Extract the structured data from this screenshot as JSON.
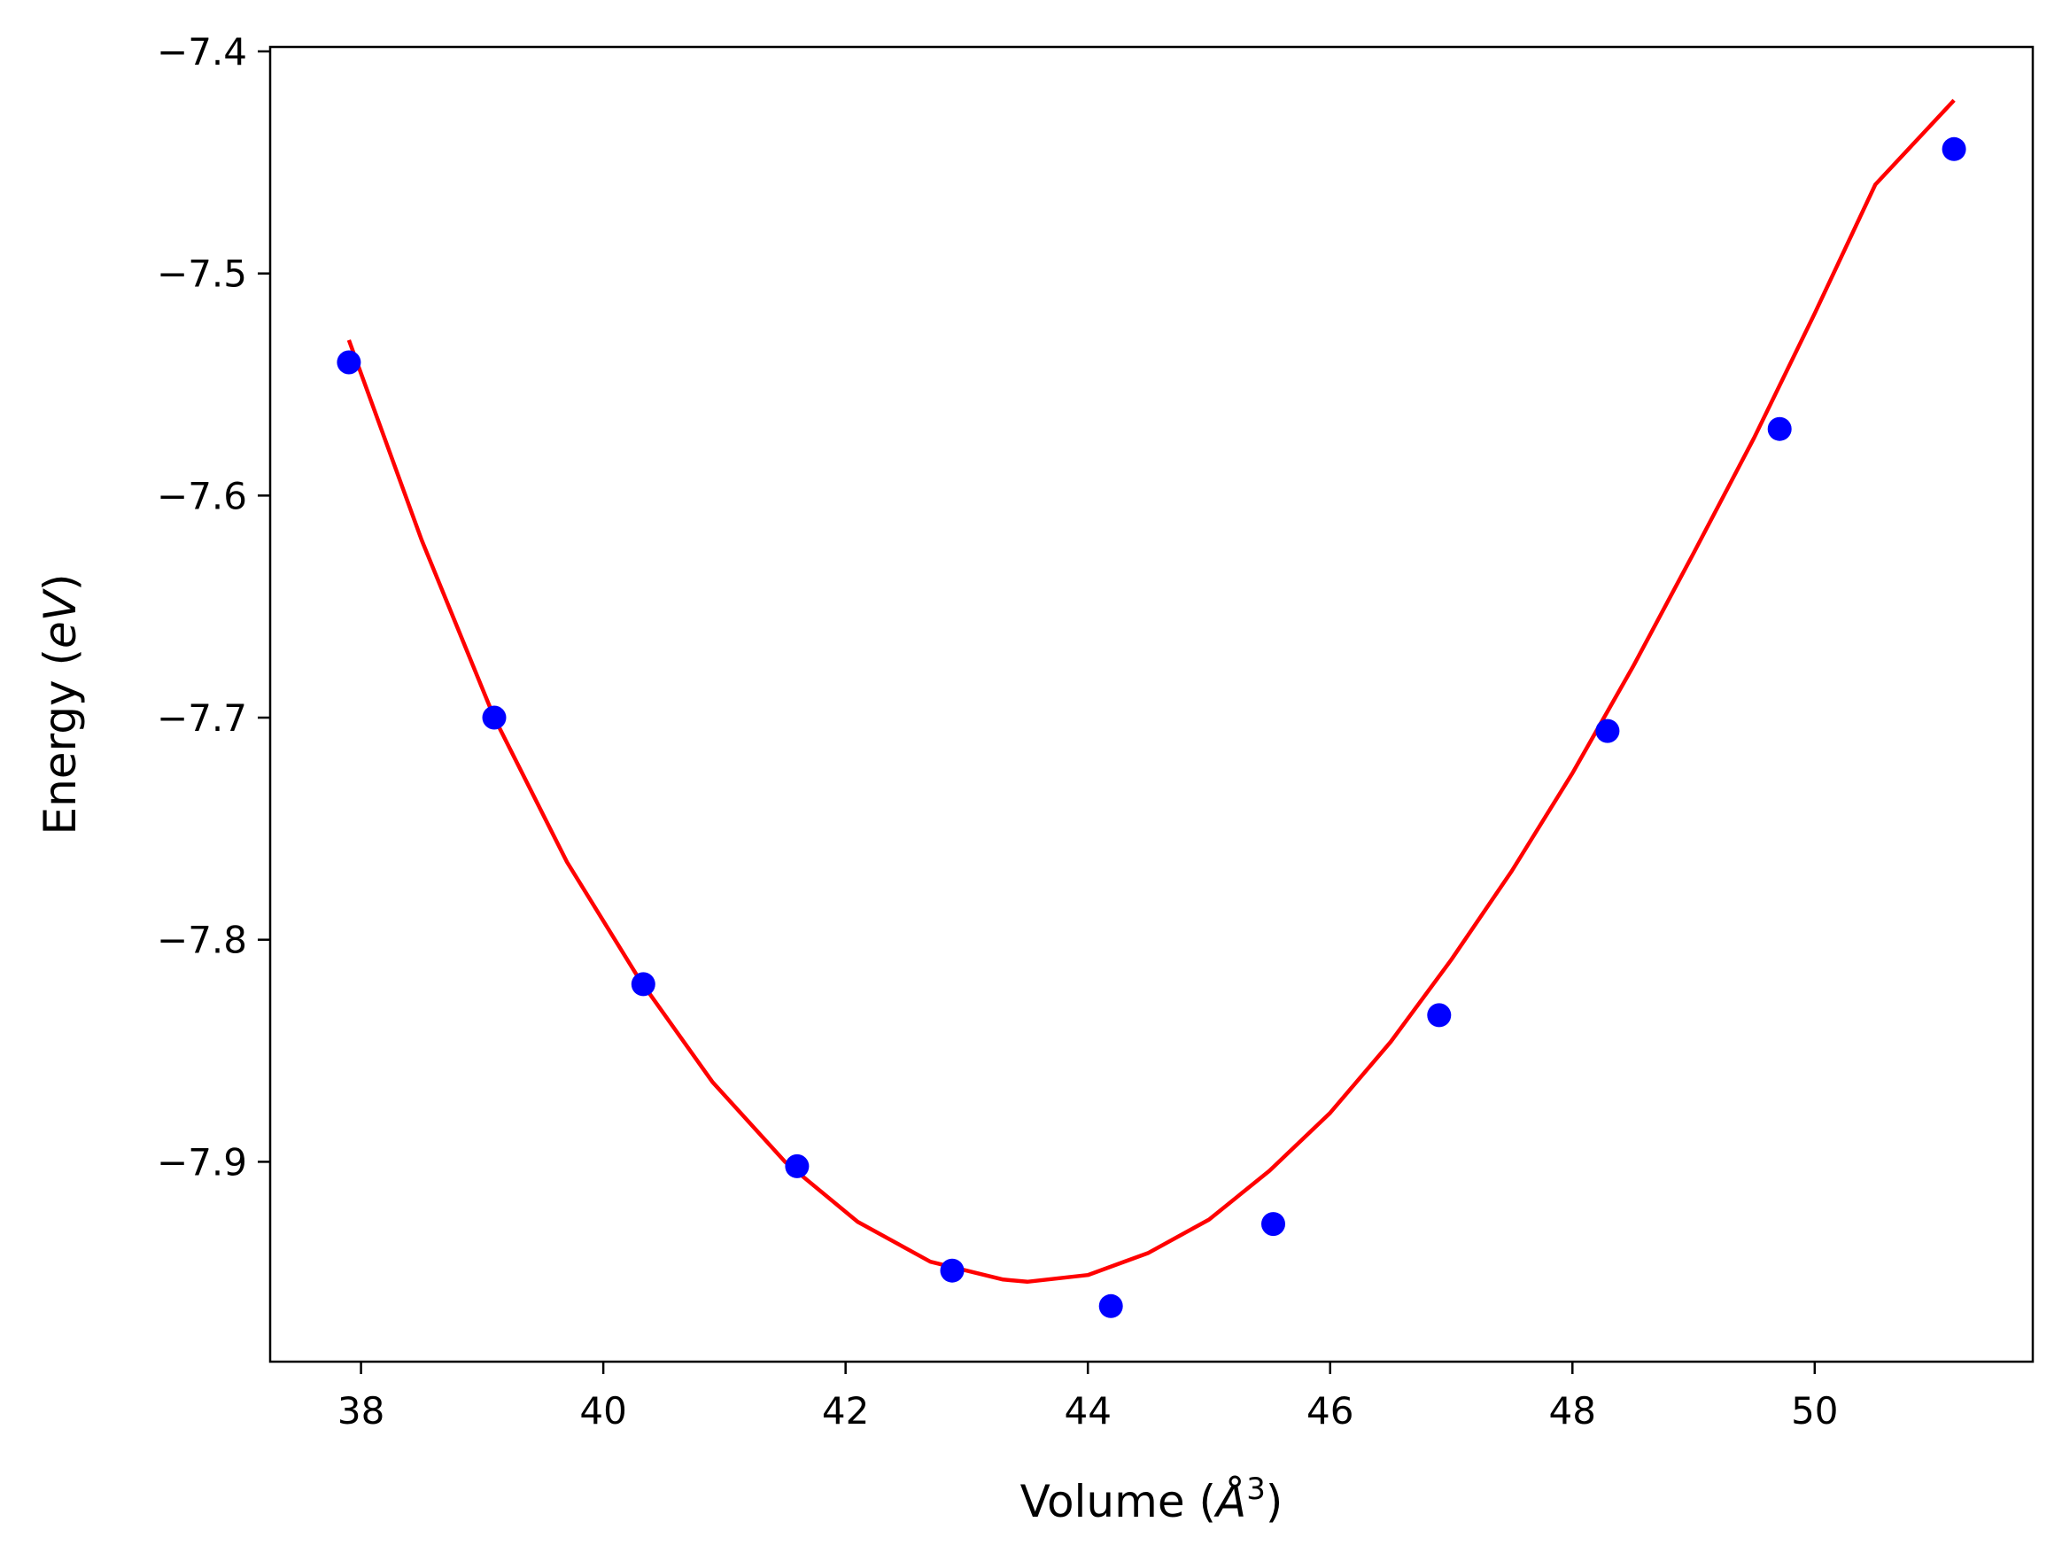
{
  "chart_data": {
    "type": "scatter",
    "xlabel": "Volume (Å³)",
    "ylabel": "Energy (eV)",
    "xlabel_parts": {
      "prefix": "Volume (",
      "unit": "Å",
      "sup": "3",
      "suffix": ")"
    },
    "ylabel_parts": {
      "prefix": "Energy (",
      "unit": "eV",
      "suffix": ")"
    },
    "xlim": [
      37.25,
      51.8
    ],
    "ylim": [
      -7.99,
      -7.398
    ],
    "x_ticks": [
      38,
      40,
      42,
      44,
      46,
      48,
      50
    ],
    "x_tick_labels": [
      "38",
      "40",
      "42",
      "44",
      "46",
      "48",
      "50"
    ],
    "y_ticks": [
      -7.4,
      -7.5,
      -7.6,
      -7.7,
      -7.8,
      -7.9
    ],
    "y_tick_labels": [
      "−7.4",
      "−7.5",
      "−7.6",
      "−7.7",
      "−7.8",
      "−7.9"
    ],
    "grid": false,
    "series": [
      {
        "kind": "scatter",
        "color": "#0000ff",
        "x": [
          37.9,
          39.1,
          40.33,
          41.6,
          42.88,
          44.19,
          45.53,
          46.9,
          48.29,
          49.71,
          51.15
        ],
        "y": [
          -7.54,
          -7.7,
          -7.82,
          -7.902,
          -7.949,
          -7.965,
          -7.928,
          -7.834,
          -7.706,
          -7.57,
          -7.444
        ]
      },
      {
        "kind": "line",
        "color": "#ff0000",
        "x": [
          37.9,
          38.5,
          39.1,
          39.7,
          40.3,
          40.9,
          41.5,
          42.1,
          42.7,
          43.3,
          43.5,
          44.0,
          44.5,
          45.0,
          45.5,
          46.0,
          46.5,
          47.0,
          47.5,
          48.0,
          48.5,
          49.0,
          49.5,
          50.0,
          50.5,
          51.15
        ],
        "y": [
          -7.53,
          -7.62,
          -7.7,
          -7.765,
          -7.818,
          -7.864,
          -7.9,
          -7.927,
          -7.945,
          -7.953,
          -7.954,
          -7.951,
          -7.941,
          -7.926,
          -7.904,
          -7.878,
          -7.846,
          -7.809,
          -7.769,
          -7.725,
          -7.677,
          -7.626,
          -7.574,
          -7.518,
          -7.46,
          -7.422
        ]
      }
    ]
  },
  "colors": {
    "points": "#0000ff",
    "curve": "#ff0000",
    "axes": "#000000"
  }
}
